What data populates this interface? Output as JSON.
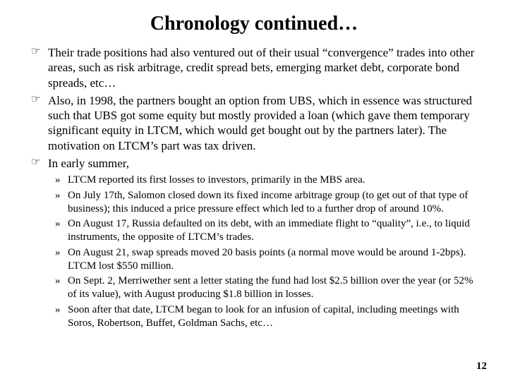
{
  "colors": {
    "background": "#ffffff",
    "text": "#000000"
  },
  "typography": {
    "font_family": "Times New Roman",
    "title_fontsize_pt": 28,
    "title_weight": "bold",
    "body_fontsize_pt": 17,
    "sub_fontsize_pt": 15,
    "line_height": 1.25
  },
  "bullets": {
    "level1_marker": "☞",
    "level2_marker": "»"
  },
  "title": "Chronology continued…",
  "items": [
    {
      "text": "Their trade positions had also ventured out of their usual “convergence” trades into other areas, such as risk arbitrage, credit spread bets, emerging market debt, corporate bond spreads, etc…"
    },
    {
      "text": "Also, in 1998, the partners bought an option from UBS, which in essence was structured such that UBS got some equity but mostly provided a loan (which gave them temporary significant equity in LTCM, which would get bought out by the partners later). The motivation on LTCM’s part was tax driven."
    },
    {
      "text": "In early summer,",
      "sub": [
        "LTCM reported its first losses to investors, primarily in the MBS area.",
        "On July 17th, Salomon closed down its fixed income arbitrage group (to get out of that type of business); this induced a price pressure effect which led to a further drop of around 10%.",
        "On August 17, Russia defaulted on its debt, with an immediate flight to “quality”, i.e., to liquid instruments, the opposite of LTCM’s trades.",
        "On August 21, swap spreads moved 20 basis points (a normal move would be around 1-2bps). LTCM lost $550 million.",
        "On Sept. 2, Merriwether sent a letter stating the fund had lost $2.5 billion over the year (or 52% of its value), with August producing $1.8 billion in losses.",
        "Soon after that date, LTCM began to look for an infusion of capital, including meetings with Soros, Robertson, Buffet, Goldman Sachs, etc…"
      ]
    }
  ],
  "page_number": "12"
}
